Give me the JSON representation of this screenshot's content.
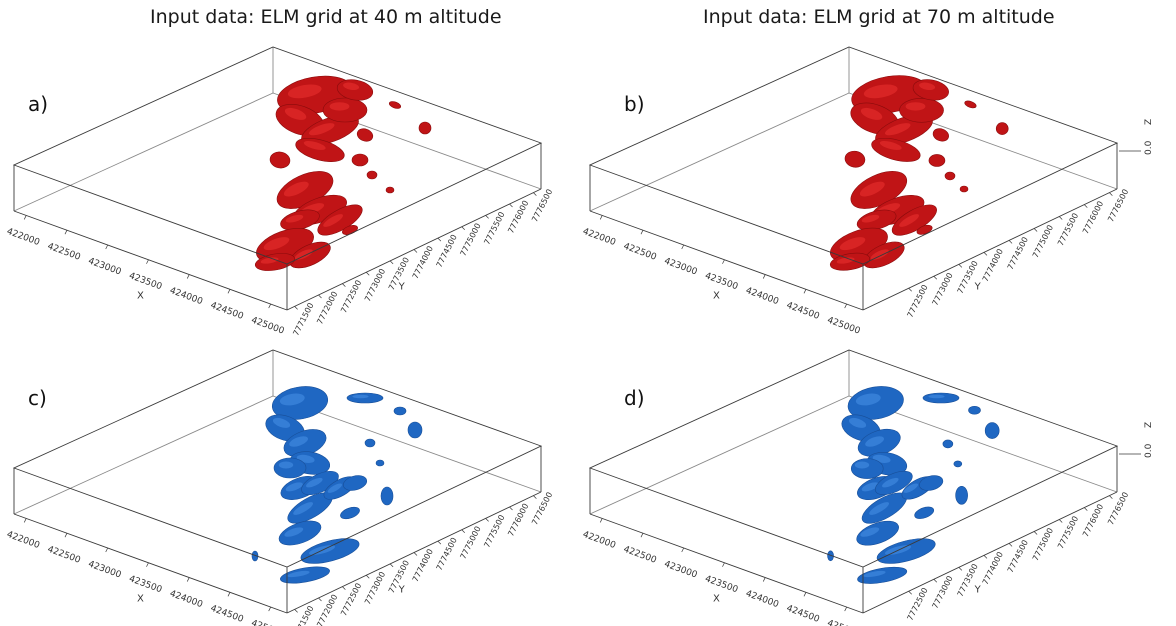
{
  "headers": {
    "left": "Input data: ELM grid at 40 m altitude",
    "right": "Input data: ELM grid at 70 m altitude"
  },
  "colors": {
    "red_body": "#c01416",
    "red_highlight": "#e02a2a",
    "blue_body": "#1f67c2",
    "blue_highlight": "#3d86dc",
    "box_line": "#3a3a3a"
  },
  "axes": {
    "x_label": "X",
    "y_label": "Y",
    "z_label": "Z",
    "z_tick": "0.0",
    "x_ticks": [
      "422000",
      "422500",
      "423000",
      "423500",
      "424000",
      "424500",
      "425000"
    ],
    "y_ticks_full": [
      "7771500",
      "7772000",
      "7772500",
      "7773000",
      "7773500",
      "7774000",
      "7774500",
      "7775000",
      "7775500",
      "7776000",
      "7776500"
    ],
    "y_ticks_partial": [
      "7772500",
      "7773000",
      "7773500",
      "7774000",
      "7774500",
      "7775000",
      "7775500",
      "7776000",
      "7776500"
    ]
  },
  "panels": [
    {
      "label": "a)",
      "anomaly": "red",
      "altitude": "40 m",
      "show_z": false,
      "y_ticks": "full"
    },
    {
      "label": "b)",
      "anomaly": "red",
      "altitude": "70 m",
      "show_z": true,
      "y_ticks": "partial"
    },
    {
      "label": "c)",
      "anomaly": "blue",
      "altitude": "40 m",
      "show_z": false,
      "y_ticks": "full"
    },
    {
      "label": "d)",
      "anomaly": "blue",
      "altitude": "70 m",
      "show_z": true,
      "y_ticks": "partial"
    }
  ]
}
